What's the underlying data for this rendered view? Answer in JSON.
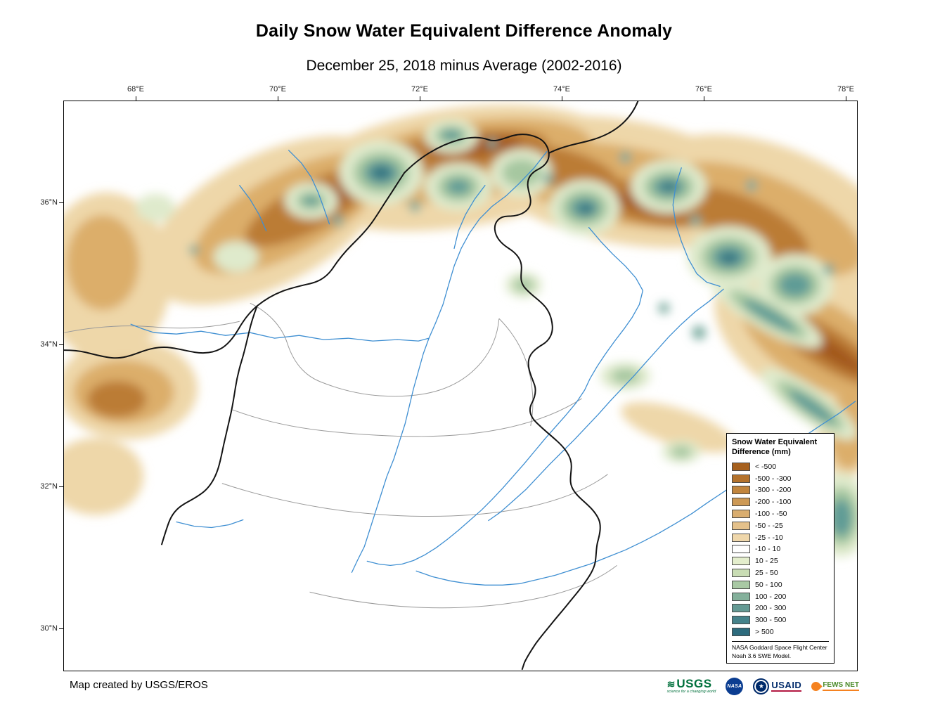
{
  "title": "Daily Snow Water Equivalent Difference Anomaly",
  "subtitle": "December 25, 2018 minus Average (2002-2016)",
  "map": {
    "x_ticks": [
      "68°E",
      "70°E",
      "72°E",
      "74°E",
      "76°E",
      "78°E"
    ],
    "y_ticks": [
      "36°N",
      "34°N",
      "32°N",
      "30°N"
    ]
  },
  "legend": {
    "title_line1": "Snow Water Equivalent",
    "title_line2": "Difference (mm)",
    "entries": [
      {
        "label": "< -500",
        "color": "#a6601e"
      },
      {
        "label": "-500 - -300",
        "color": "#b4722c"
      },
      {
        "label": "-300 - -200",
        "color": "#c1853e"
      },
      {
        "label": "-200 - -100",
        "color": "#cd9955"
      },
      {
        "label": "-100 - -50",
        "color": "#d9ad6f"
      },
      {
        "label": "-50 - -25",
        "color": "#e4c18b"
      },
      {
        "label": "-25 - -10",
        "color": "#efd7ab"
      },
      {
        "label": "-10 - 10",
        "color": "#ffffff"
      },
      {
        "label": "10 - 25",
        "color": "#e4eecd"
      },
      {
        "label": "25 - 50",
        "color": "#c9ddb4"
      },
      {
        "label": "50 - 100",
        "color": "#a9c9a4"
      },
      {
        "label": "100 - 200",
        "color": "#84b09b"
      },
      {
        "label": "200 - 300",
        "color": "#649a94"
      },
      {
        "label": "300 - 500",
        "color": "#45828a"
      },
      {
        "label": "> 500",
        "color": "#2d6b7d"
      }
    ],
    "footnote_line1": "NASA Goddard Space Flight Center",
    "footnote_line2": "Noah 3.6 SWE Model."
  },
  "footer": {
    "credit": "Map created by USGS/EROS",
    "logos": {
      "usgs": "USGS",
      "usgs_tagline": "science for a changing world",
      "nasa": "NASA",
      "usaid": "USAID",
      "fews": "FEWS NET"
    }
  }
}
